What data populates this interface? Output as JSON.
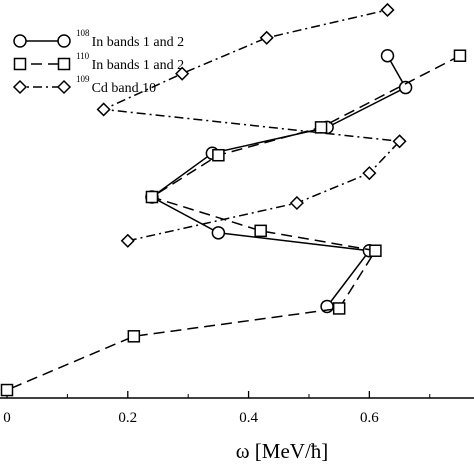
{
  "chart_data": {
    "type": "line",
    "xlabel": "ω [MeV/ħ]",
    "ylabel": "",
    "xlim": [
      0.0,
      0.76
    ],
    "ylim": [
      0,
      1
    ],
    "x_ticks": [
      {
        "value": 0.0,
        "label": "0"
      },
      {
        "value": 0.2,
        "label": "0.2"
      },
      {
        "value": 0.4,
        "label": "0.4"
      },
      {
        "value": 0.6,
        "label": "0.6"
      }
    ],
    "legend_position": "top-left",
    "series": [
      {
        "name": "In bands 1 and 2",
        "mass_number": "108",
        "marker": "circle",
        "line": "solid",
        "points": [
          {
            "x": 0.66,
            "y": 0.78
          },
          {
            "x": 0.53,
            "y": 0.68
          },
          {
            "x": 0.34,
            "y": 0.615
          },
          {
            "x": 0.24,
            "y": 0.505
          },
          {
            "x": 0.35,
            "y": 0.415
          },
          {
            "x": 0.6,
            "y": 0.37
          },
          {
            "x": 0.53,
            "y": 0.23
          }
        ],
        "offscale_start": {
          "x": 0.63,
          "y": 0.86
        }
      },
      {
        "name": "In bands 1 and 2",
        "mass_number": "110",
        "marker": "square",
        "line": "dashed",
        "points": [
          {
            "x": 0.75,
            "y": 0.86
          },
          {
            "x": 0.52,
            "y": 0.68
          },
          {
            "x": 0.35,
            "y": 0.61
          },
          {
            "x": 0.24,
            "y": 0.505
          },
          {
            "x": 0.42,
            "y": 0.42
          },
          {
            "x": 0.61,
            "y": 0.37
          },
          {
            "x": 0.55,
            "y": 0.225
          },
          {
            "x": 0.21,
            "y": 0.155
          },
          {
            "x": 0.0,
            "y": 0.02
          }
        ]
      },
      {
        "name": "Cd band 10",
        "mass_number": "109",
        "marker": "diamond",
        "line": "dashdot",
        "points": [
          {
            "x": 0.2,
            "y": 0.395
          },
          {
            "x": 0.48,
            "y": 0.49
          },
          {
            "x": 0.6,
            "y": 0.565
          },
          {
            "x": 0.65,
            "y": 0.645
          },
          {
            "x": 0.16,
            "y": 0.725
          },
          {
            "x": 0.29,
            "y": 0.815
          },
          {
            "x": 0.43,
            "y": 0.905
          },
          {
            "x": 0.63,
            "y": 0.975
          }
        ]
      }
    ]
  }
}
